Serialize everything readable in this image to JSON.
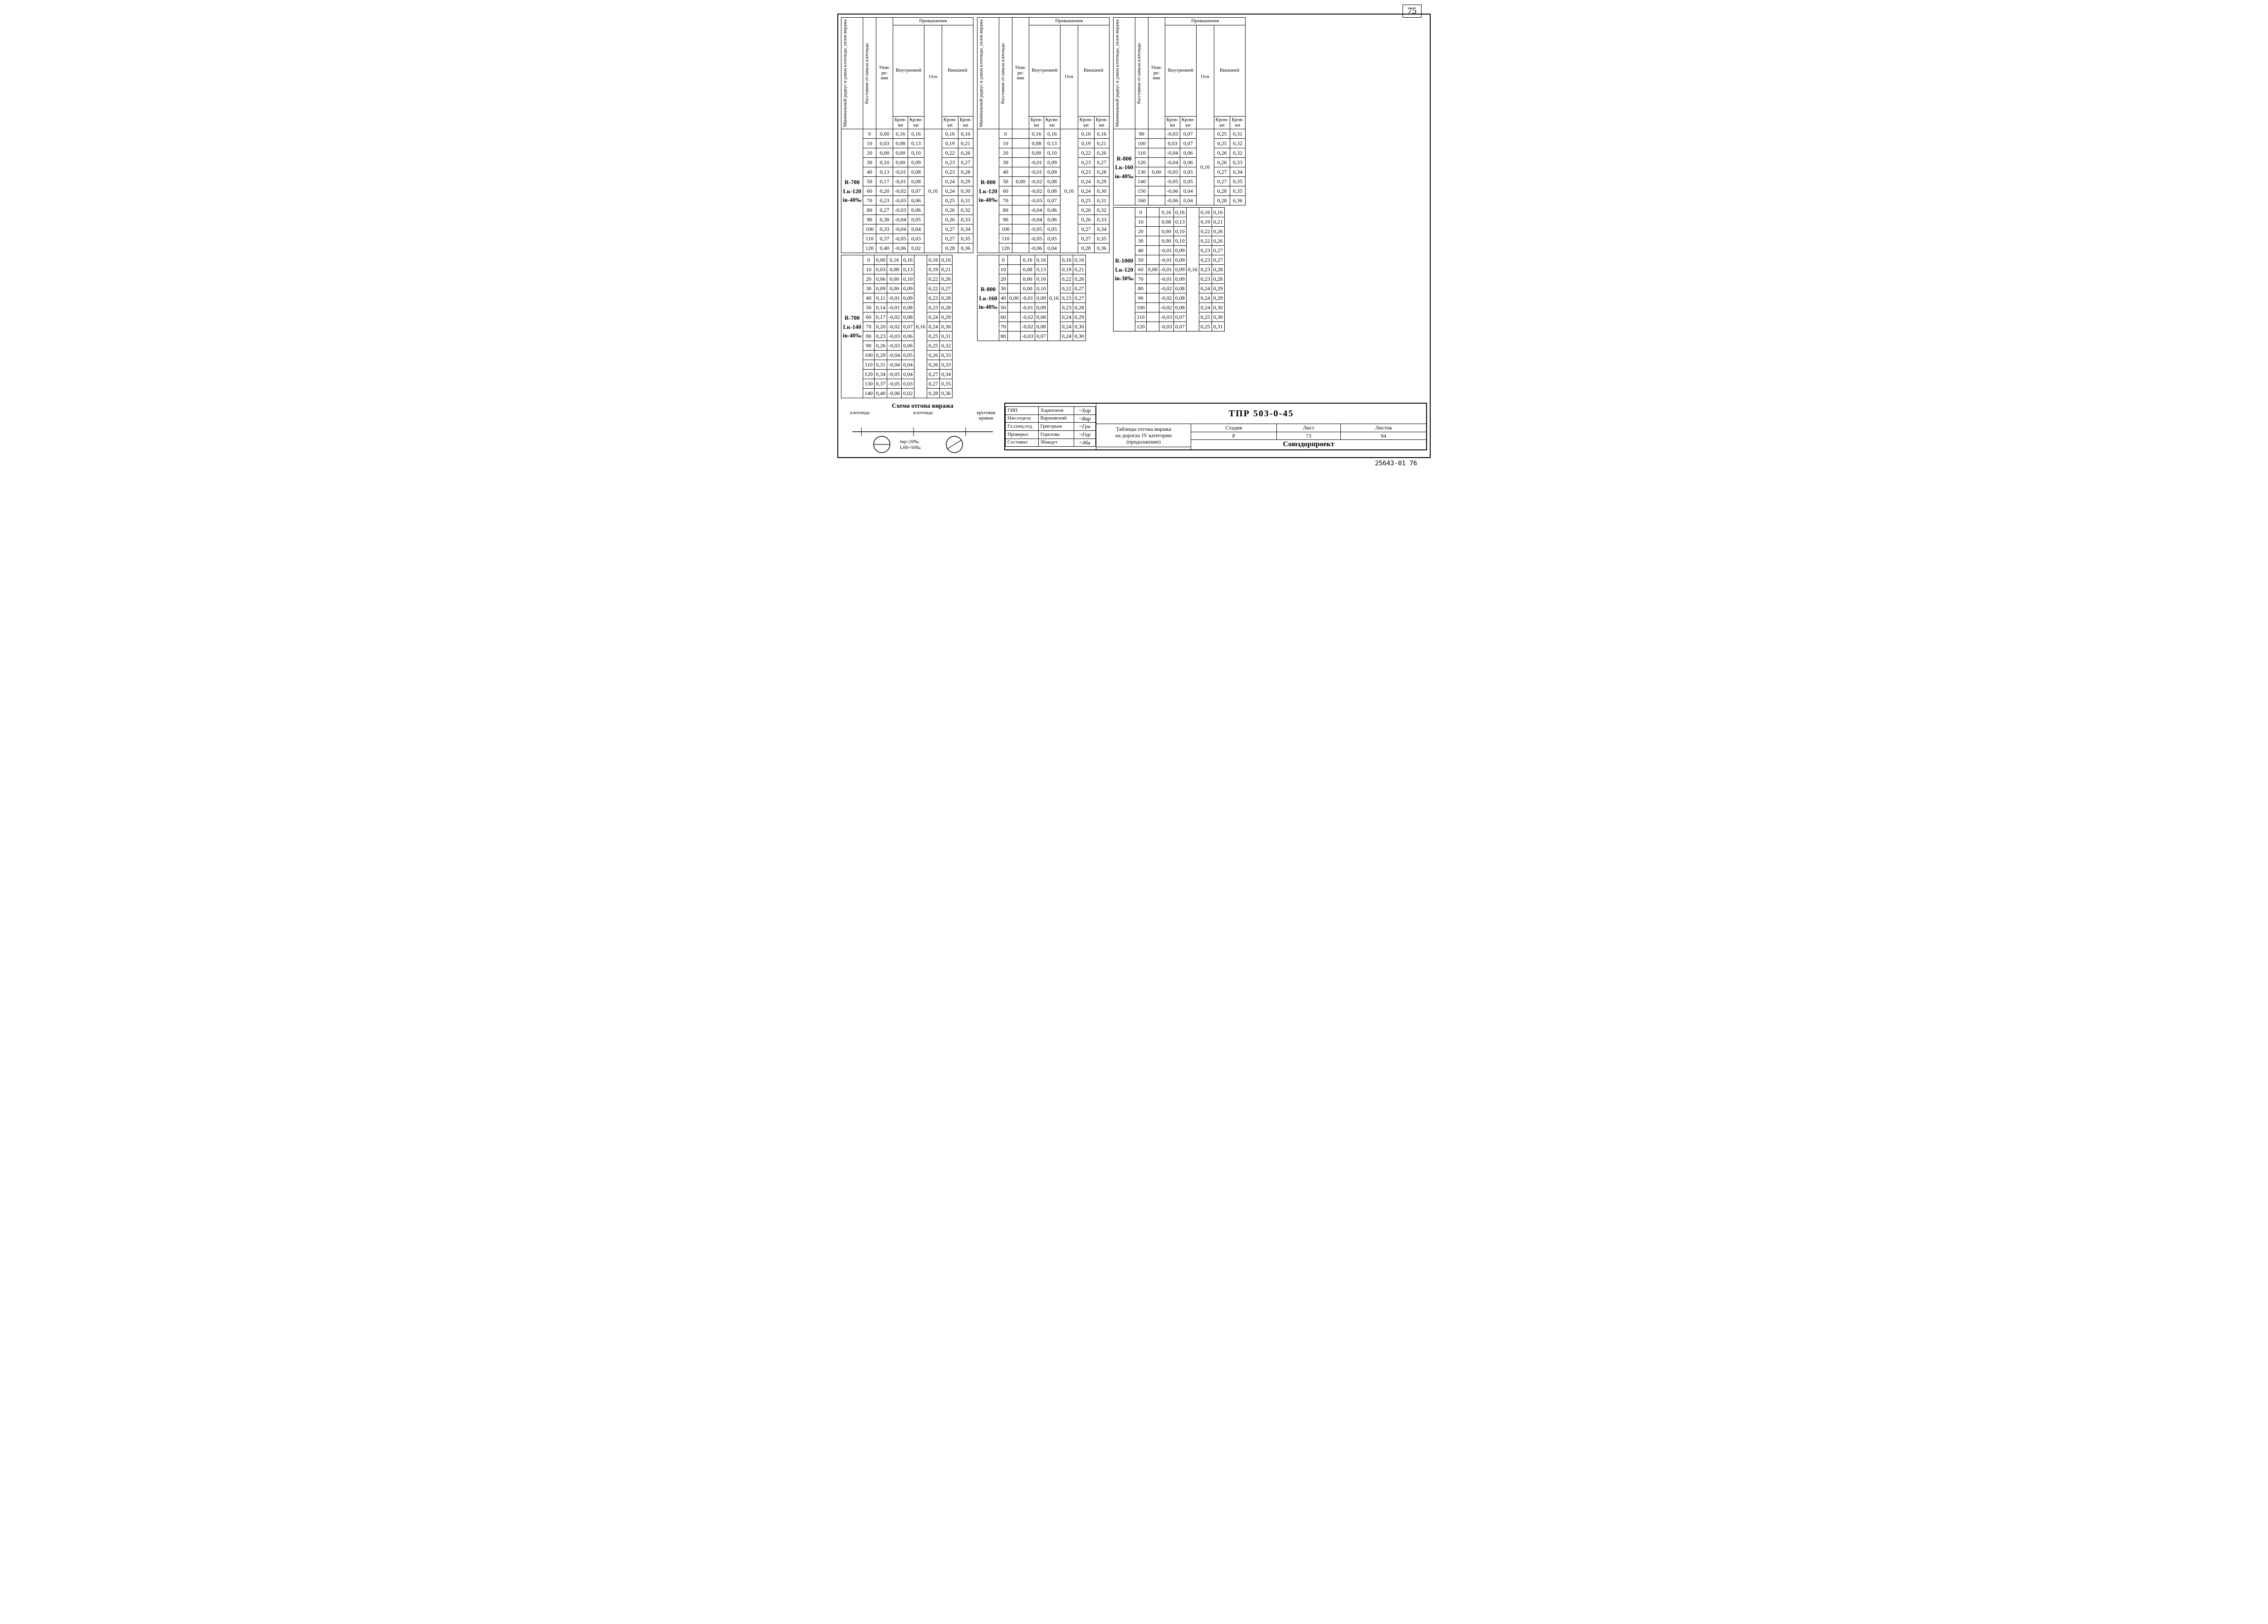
{
  "page_number_top": "75",
  "footer_code": "25643-01   76",
  "header_labels": {
    "col_radius": "Минимальный радиус и длина клотоиды, уклон виража",
    "col_dist": "Расстояние от начала клотоиды",
    "col_wide": "Уши-\nре-\nние",
    "col_exc": "Превышения",
    "col_inner": "Внутренней",
    "col_outer": "Внешней",
    "col_axis": "Оси",
    "sub_brov": "Бров-\nки",
    "sub_krom": "Кром-\nки"
  },
  "blocks": [
    {
      "label": "R-700\nLк-120\niв-40‰",
      "axis": "0,16",
      "rows": [
        [
          "0",
          "0,00",
          "0,16",
          "0,16",
          "0,16",
          "0,16"
        ],
        [
          "10",
          "0,03",
          "0,08",
          "0,13",
          "0,19",
          "0,21"
        ],
        [
          "20",
          "0,00",
          "0,00",
          "0,10",
          "0,22",
          "0,26"
        ],
        [
          "30",
          "0,10",
          "0,00",
          "0,09",
          "0,23",
          "0,27"
        ],
        [
          "40",
          "0,13",
          "-0,01",
          "0,08",
          "0,23",
          "0,28"
        ],
        [
          "50",
          "0,17",
          "-0,01",
          "0,08",
          "0,24",
          "0,29"
        ],
        [
          "60",
          "0,20",
          "-0,02",
          "0,07",
          "0,24",
          "0,30"
        ],
        [
          "70",
          "0,23",
          "-0,03",
          "0,06",
          "0,25",
          "0,31"
        ],
        [
          "80",
          "0,27",
          "-0,03",
          "0,06",
          "0,26",
          "0,32"
        ],
        [
          "90",
          "0,30",
          "-0,04",
          "0,05",
          "0,26",
          "0,33"
        ],
        [
          "100",
          "0,33",
          "-0,04",
          "0,04",
          "0,27",
          "0,34"
        ],
        [
          "110",
          "0,37",
          "-0,05",
          "0,03",
          "0,27",
          "0,35"
        ],
        [
          "120",
          "0,40",
          "-0,06",
          "0,02",
          "0,28",
          "0,36"
        ]
      ]
    },
    {
      "label": "R-700\nLк-140\niв-40‰",
      "axis": "0,16",
      "rows": [
        [
          "0",
          "0,00",
          "0,16",
          "0,16",
          "0,16",
          "0,16"
        ],
        [
          "10",
          "0,03",
          "0,08",
          "0,13",
          "0,19",
          "0,21"
        ],
        [
          "20",
          "0,06",
          "0,00",
          "0,10",
          "0,22",
          "0,26"
        ],
        [
          "30",
          "0,09",
          "0,00",
          "0,09",
          "0,22",
          "0,27"
        ],
        [
          "40",
          "0,11",
          "-0,01",
          "0,09",
          "0,23",
          "0,28"
        ],
        [
          "50",
          "0,14",
          "-0,01",
          "0,08",
          "0,23",
          "0,28"
        ],
        [
          "60",
          "0,17",
          "-0,02",
          "0,08",
          "0,24",
          "0,29"
        ],
        [
          "70",
          "0,20",
          "-0,02",
          "0,07",
          "0,24",
          "0,30"
        ],
        [
          "80",
          "0,23",
          "-0,03",
          "0,06",
          "0,25",
          "0,31"
        ],
        [
          "90",
          "0,26",
          "-0,03",
          "0,06",
          "0,25",
          "0,32"
        ],
        [
          "100",
          "0,29",
          "-0,04",
          "0,05",
          "0,26",
          "0,33"
        ],
        [
          "110",
          "0,31",
          "-0,04",
          "0,04",
          "0,26",
          "0,33"
        ],
        [
          "120",
          "0,34",
          "-0,05",
          "0,04",
          "0,27",
          "0,34"
        ],
        [
          "130",
          "0,37",
          "-0,05",
          "0,03",
          "0,27",
          "0,35"
        ],
        [
          "140",
          "0,40",
          "-0,06",
          "0,02",
          "0,28",
          "0,36"
        ]
      ]
    },
    {
      "label": "R-800\nLк-120\niв-40‰",
      "axis": "0,16",
      "rows": [
        [
          "0",
          "",
          "0,16",
          "0,16",
          "0,16",
          "0,16"
        ],
        [
          "10",
          "",
          "0,08",
          "0,13",
          "0,19",
          "0,21"
        ],
        [
          "20",
          "",
          "0,00",
          "0,10",
          "0,22",
          "0,26"
        ],
        [
          "30",
          "",
          "-0,01",
          "0,09",
          "0,23",
          "0,27"
        ],
        [
          "40",
          "",
          "-0,01",
          "0,09",
          "0,23",
          "0,28"
        ],
        [
          "50",
          "0,00",
          "-0,02",
          "0,08",
          "0,24",
          "0,29"
        ],
        [
          "60",
          "",
          "-0,02",
          "0,08",
          "0,24",
          "0,30"
        ],
        [
          "70",
          "",
          "-0,03",
          "0,07",
          "0,25",
          "0,31"
        ],
        [
          "80",
          "",
          "-0,04",
          "0,06",
          "0,26",
          "0,32"
        ],
        [
          "90",
          "",
          "-0,04",
          "0,06",
          "0,26",
          "0,33"
        ],
        [
          "100",
          "",
          "-0,05",
          "0,05",
          "0,27",
          "0,34"
        ],
        [
          "110",
          "",
          "-0,05",
          "0,05",
          "0,27",
          "0,35"
        ],
        [
          "120",
          "",
          "-0,06",
          "0,04",
          "0,28",
          "0,36"
        ]
      ]
    },
    {
      "label": "R-800\nLк-160\niв-40‰",
      "axis": "0,16",
      "rows": [
        [
          "0",
          "",
          "0,16",
          "0,16",
          "0,16",
          "0,16"
        ],
        [
          "10",
          "",
          "0,08",
          "0,13",
          "0,19",
          "0,21"
        ],
        [
          "20",
          "",
          "0,00",
          "0,10",
          "0,22",
          "0,26"
        ],
        [
          "30",
          "",
          "0,00",
          "0,10",
          "0,22",
          "0,27"
        ],
        [
          "40",
          "0,00",
          "-0,01",
          "0,09",
          "0,23",
          "0,27"
        ],
        [
          "50",
          "",
          "-0,01",
          "0,09",
          "0,23",
          "0,28"
        ],
        [
          "60",
          "",
          "-0,02",
          "0,08",
          "0,24",
          "0,29"
        ],
        [
          "70",
          "",
          "-0,02",
          "0,08",
          "0,24",
          "0,30"
        ],
        [
          "80",
          "",
          "-0,03",
          "0,07",
          "0,24",
          "0,30"
        ]
      ]
    },
    {
      "label": "R-800\nLк-160\niв-40‰",
      "axis": "0,16",
      "rows": [
        [
          "90",
          "",
          "-0,03",
          "0,07",
          "0,25",
          "0,31"
        ],
        [
          "100",
          "",
          "0,03",
          "0,07",
          "0,25",
          "0,32"
        ],
        [
          "110",
          "",
          "-0,04",
          "0,06",
          "0,26",
          "0,32"
        ],
        [
          "120",
          "",
          "-0,04",
          "0,06",
          "0,26",
          "0,33"
        ],
        [
          "130",
          "0,00",
          "-0,05",
          "0,05",
          "0,27",
          "0,34"
        ],
        [
          "140",
          "",
          "-0,05",
          "0,05",
          "0,27",
          "0,35"
        ],
        [
          "150",
          "",
          "-0,06",
          "0,04",
          "0,28",
          "0,35"
        ],
        [
          "160",
          "",
          "-0,06",
          "0,04",
          "0,28",
          "0,36"
        ]
      ]
    },
    {
      "label": "R-1000\nLк-120\niв-30‰",
      "axis": "0,16",
      "rows": [
        [
          "0",
          "",
          "0,16",
          "0,16",
          "0,16",
          "0,16"
        ],
        [
          "10",
          "",
          "0,08",
          "0,13",
          "0,19",
          "0,21"
        ],
        [
          "20",
          "",
          "0,00",
          "0,10",
          "0,22",
          "0,26"
        ],
        [
          "30",
          "",
          "0,00",
          "0,10",
          "0,22",
          "0,26"
        ],
        [
          "40",
          "",
          "-0,01",
          "0,09",
          "0,23",
          "0,27"
        ],
        [
          "50",
          "",
          "-0,01",
          "0,09",
          "0,23",
          "0,27"
        ],
        [
          "60",
          "0,00",
          "-0,01",
          "0,09",
          "0,23",
          "0,28"
        ],
        [
          "70",
          "",
          "-0,01",
          "0,09",
          "0,23",
          "0,28"
        ],
        [
          "80",
          "",
          "-0,02",
          "0,08",
          "0,24",
          "0,29"
        ],
        [
          "90",
          "",
          "-0,02",
          "0,08",
          "0,24",
          "0,29"
        ],
        [
          "100",
          "",
          "-0,02",
          "0,08",
          "0,24",
          "0,30"
        ],
        [
          "110",
          "",
          "-0,03",
          "0,07",
          "0,25",
          "0,30"
        ],
        [
          "120",
          "",
          "-0,03",
          "0,07",
          "0,25",
          "0,31"
        ]
      ]
    }
  ],
  "schema": {
    "title": "Схема отгона виража",
    "l_clothoid": "клотоида",
    "r_clothoid": "клотоида",
    "curve": "круговая\nкривая",
    "note1": "iвр=20‰",
    "note2": "L06=50‰"
  },
  "stamp": {
    "roles": [
      [
        "ГИП",
        "Харитонов"
      ],
      [
        "Нач.отдела",
        "Варшавский"
      ],
      [
        "Гл.спец.отд.",
        "Григорьев"
      ],
      [
        "Проверил",
        "Горелова"
      ],
      [
        "Составил",
        "Збандут"
      ]
    ],
    "doc_code": "ТПР 503-0-45",
    "title": "Таблицы отгона виража\nна дорогах IV категории\n(продолжение)",
    "cols": [
      "Стадия",
      "Лист",
      "Листов"
    ],
    "vals": [
      "Р",
      "73",
      "94"
    ],
    "org": "Союздорпроект"
  }
}
